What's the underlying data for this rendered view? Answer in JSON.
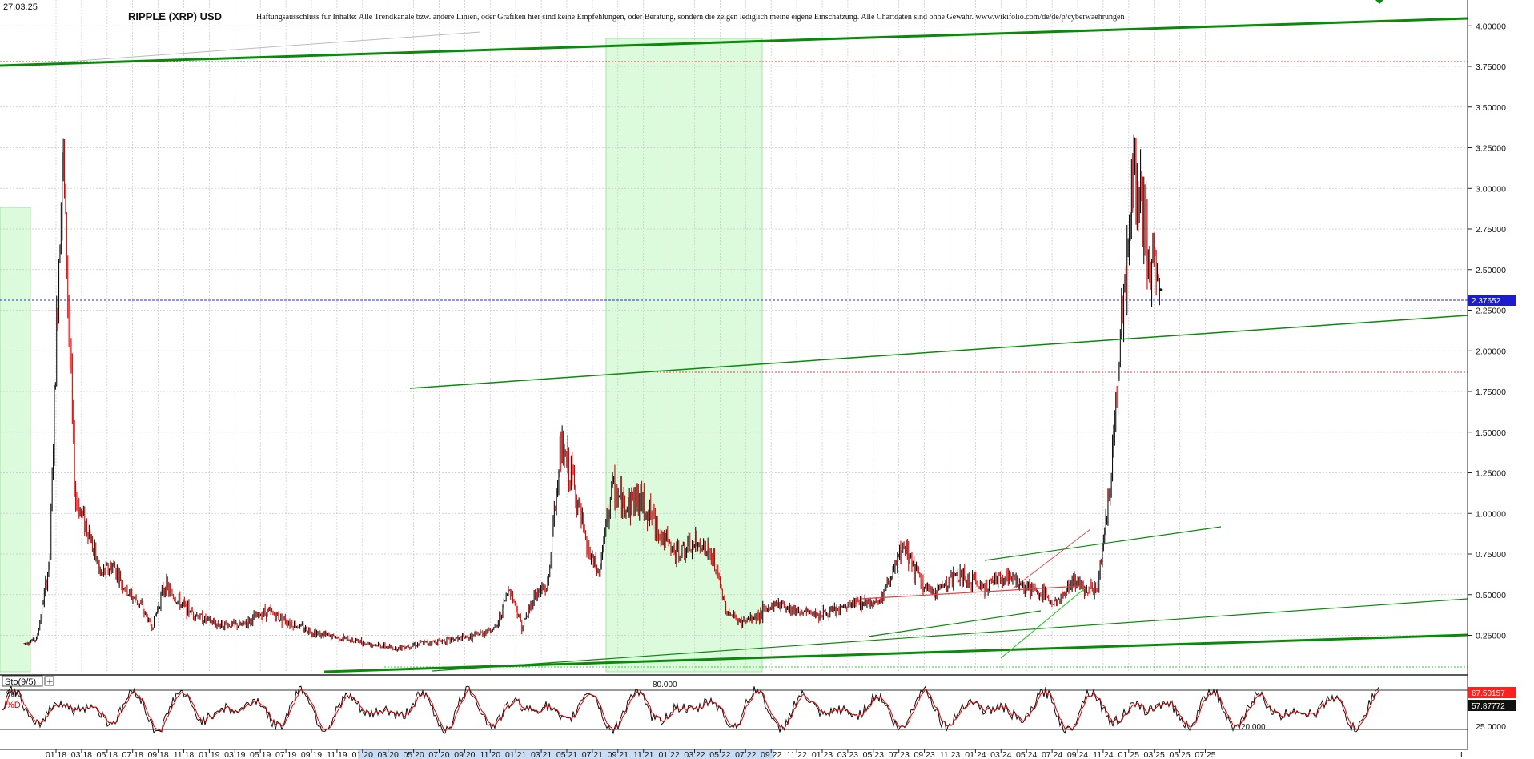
{
  "header": {
    "date": "27.03.25",
    "title": "RIPPLE (XRP) USD",
    "disclaimer": "Haftungsausschluss für Inhalte: Alle Trendkanäle bzw. andere Linien, oder Grafiken hier sind keine Empfehlungen, oder Beratung, sondern die zeigen lediglich meine eigene Einschätzung. Alle Chartdaten sind ohne Gewähr.  www.wikifolio.com/de/de/p/cyberwaehrungen"
  },
  "colors": {
    "price_up": "#111111",
    "price_down": "#e00000",
    "trend_line": "#0a8a0a",
    "trend_line_light": "#3cc83c",
    "resistance": "#e04040",
    "current_price_line": "#2a2ad0",
    "highlight_zone": "#dcfadc",
    "current_price_label_bg": "#1d1dcc",
    "stoch_k_label_bg": "#ff2020"
  },
  "chart_data": [
    {
      "type": "line",
      "title": "RIPPLE (XRP) USD",
      "y_axis_side": "right",
      "y_ticks": [
        "0.25000",
        "0.50000",
        "0.75000",
        "1.00000",
        "1.25000",
        "1.50000",
        "1.75000",
        "2.00000",
        "2.25000",
        "2.50000",
        "2.75000",
        "3.00000",
        "3.25000",
        "3.50000",
        "3.75000",
        "4.00000"
      ],
      "ylim": [
        0.0,
        4.2
      ],
      "x_ticks": [
        "01 18",
        "03 18",
        "05 18",
        "07 18",
        "09 18",
        "11 18",
        "01 19",
        "03 19",
        "05 19",
        "07 19",
        "09 19",
        "11 19",
        "01 20",
        "03 20",
        "05 20",
        "07 20",
        "09 20",
        "11 20",
        "01 21",
        "03 21",
        "05 21",
        "07 21",
        "09 21",
        "11 21",
        "01 22",
        "03 22",
        "05 22",
        "07 22",
        "09 22",
        "11 22",
        "01 23",
        "03 23",
        "05 23",
        "07 23",
        "09 23",
        "11 23",
        "01 24",
        "03 24",
        "05 24",
        "07 24",
        "09 24",
        "11 24",
        "01 25",
        "03 25",
        "05 25",
        "07 25"
      ],
      "current_price": "2.37652",
      "series": [
        {
          "values": [
            {
              "date": "2017-10",
              "v": 0.2
            },
            {
              "date": "2017-11",
              "v": 0.23
            },
            {
              "date": "2017-12",
              "v": 0.7
            },
            {
              "date": "2018-01",
              "v": 3.3
            },
            {
              "date": "2018-02",
              "v": 1.1
            },
            {
              "date": "2018-03",
              "v": 0.9
            },
            {
              "date": "2018-04",
              "v": 0.62
            },
            {
              "date": "2018-05",
              "v": 0.68
            },
            {
              "date": "2018-06",
              "v": 0.52
            },
            {
              "date": "2018-07",
              "v": 0.45
            },
            {
              "date": "2018-08",
              "v": 0.3
            },
            {
              "date": "2018-09",
              "v": 0.56
            },
            {
              "date": "2018-10",
              "v": 0.46
            },
            {
              "date": "2018-11",
              "v": 0.4
            },
            {
              "date": "2018-12",
              "v": 0.35
            },
            {
              "date": "2019-01",
              "v": 0.32
            },
            {
              "date": "2019-03",
              "v": 0.31
            },
            {
              "date": "2019-05",
              "v": 0.4
            },
            {
              "date": "2019-07",
              "v": 0.32
            },
            {
              "date": "2019-09",
              "v": 0.26
            },
            {
              "date": "2019-11",
              "v": 0.23
            },
            {
              "date": "2020-01",
              "v": 0.2
            },
            {
              "date": "2020-03",
              "v": 0.17
            },
            {
              "date": "2020-05",
              "v": 0.2
            },
            {
              "date": "2020-07",
              "v": 0.22
            },
            {
              "date": "2020-09",
              "v": 0.24
            },
            {
              "date": "2020-11",
              "v": 0.3
            },
            {
              "date": "2020-12",
              "v": 0.55
            },
            {
              "date": "2021-01",
              "v": 0.3
            },
            {
              "date": "2021-02",
              "v": 0.5
            },
            {
              "date": "2021-03",
              "v": 0.55
            },
            {
              "date": "2021-04",
              "v": 1.4
            },
            {
              "date": "2021-05",
              "v": 1.2
            },
            {
              "date": "2021-06",
              "v": 0.8
            },
            {
              "date": "2021-07",
              "v": 0.62
            },
            {
              "date": "2021-08",
              "v": 1.15
            },
            {
              "date": "2021-09",
              "v": 1.05
            },
            {
              "date": "2021-10",
              "v": 1.1
            },
            {
              "date": "2021-11",
              "v": 1.0
            },
            {
              "date": "2021-12",
              "v": 0.85
            },
            {
              "date": "2022-01",
              "v": 0.75
            },
            {
              "date": "2022-02",
              "v": 0.78
            },
            {
              "date": "2022-03",
              "v": 0.82
            },
            {
              "date": "2022-04",
              "v": 0.7
            },
            {
              "date": "2022-05",
              "v": 0.4
            },
            {
              "date": "2022-06",
              "v": 0.33
            },
            {
              "date": "2022-07",
              "v": 0.35
            },
            {
              "date": "2022-09",
              "v": 0.45
            },
            {
              "date": "2022-11",
              "v": 0.39
            },
            {
              "date": "2023-01",
              "v": 0.38
            },
            {
              "date": "2023-03",
              "v": 0.45
            },
            {
              "date": "2023-05",
              "v": 0.46
            },
            {
              "date": "2023-07",
              "v": 0.8
            },
            {
              "date": "2023-08",
              "v": 0.6
            },
            {
              "date": "2023-09",
              "v": 0.5
            },
            {
              "date": "2023-11",
              "v": 0.62
            },
            {
              "date": "2024-01",
              "v": 0.55
            },
            {
              "date": "2024-03",
              "v": 0.62
            },
            {
              "date": "2024-05",
              "v": 0.52
            },
            {
              "date": "2024-07",
              "v": 0.45
            },
            {
              "date": "2024-08",
              "v": 0.58
            },
            {
              "date": "2024-10",
              "v": 0.53
            },
            {
              "date": "2024-11",
              "v": 1.1
            },
            {
              "date": "2024-12",
              "v": 2.3
            },
            {
              "date": "2025-01",
              "v": 3.1
            },
            {
              "date": "2025-02",
              "v": 2.6
            },
            {
              "date": "2025-03",
              "v": 2.37652
            }
          ]
        }
      ]
    },
    {
      "type": "line",
      "title": "Sto(9/5)",
      "series": [
        {
          "name": "%K"
        },
        {
          "name": "%D"
        }
      ],
      "levels": {
        "upper": "80.000",
        "lower": "20.000"
      },
      "y_tick": "25.0000",
      "k_value": "67.50157",
      "d_value": "57.87772",
      "ylim": [
        0,
        100
      ]
    }
  ]
}
